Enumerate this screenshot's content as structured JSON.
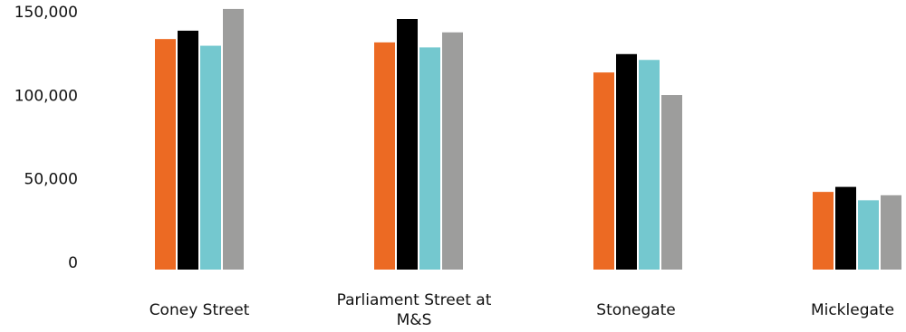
{
  "chart_data": {
    "type": "bar",
    "title": "",
    "xlabel": "",
    "ylabel": "",
    "ylim": [
      0,
      150000
    ],
    "yticks": [
      0,
      50000,
      100000,
      150000
    ],
    "ytick_labels": [
      "0",
      "50,000",
      "100,000",
      "150,000"
    ],
    "grid": false,
    "legend": "none",
    "categories": [
      [
        "Coney Street"
      ],
      [
        "Parliament Street at",
        "M&S"
      ],
      [
        "Stonegate"
      ],
      [
        "Micklegate"
      ]
    ],
    "series": [
      {
        "color": "#ec6a23",
        "values": [
          138000,
          136000,
          118000,
          46500
        ]
      },
      {
        "color": "#000000",
        "values": [
          143000,
          150000,
          129000,
          49500
        ]
      },
      {
        "color": "#74c8cf",
        "values": [
          134000,
          133000,
          125500,
          41500
        ]
      },
      {
        "color": "#9d9d9c",
        "values": [
          156000,
          142000,
          104500,
          44500
        ]
      }
    ]
  }
}
